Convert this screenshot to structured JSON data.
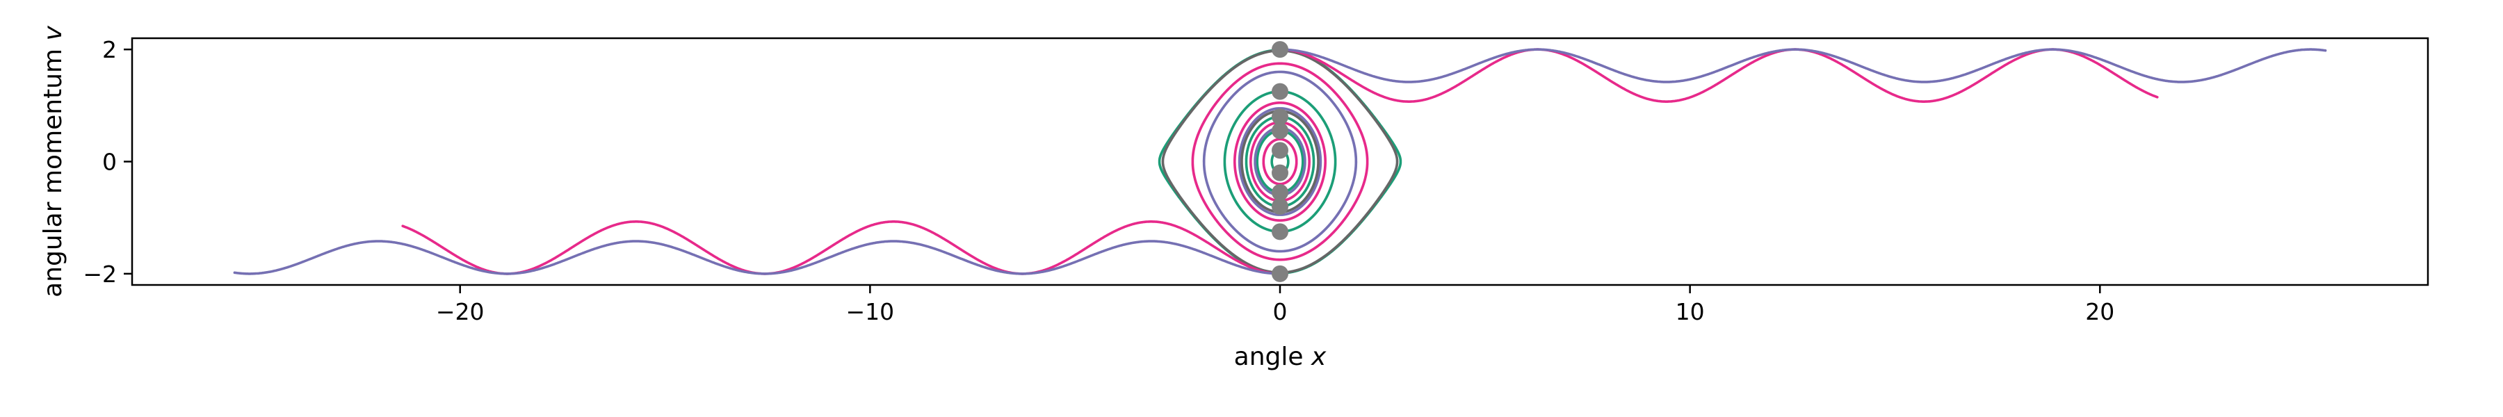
{
  "chart_data": {
    "type": "line",
    "title": "",
    "xlabel": "angle",
    "xlabel_var": "x",
    "ylabel": "angular momentum",
    "ylabel_var": "v",
    "xlim": [
      -28,
      28
    ],
    "ylim": [
      -2.2,
      2.2
    ],
    "xticks": [
      -20,
      -10,
      0,
      10,
      20
    ],
    "xtick_labels": [
      "−20",
      "−10",
      "0",
      "10",
      "20"
    ],
    "yticks": [
      -2,
      0,
      2
    ],
    "ytick_labels": [
      "−2",
      "0",
      "2"
    ],
    "grid": false,
    "legend": "none",
    "system": "pendulum",
    "initial_points": {
      "x": [
        0,
        0,
        0,
        0,
        0,
        0,
        0,
        0,
        0,
        0
      ],
      "v": [
        2.0,
        1.25,
        0.8,
        0.55,
        0.2,
        -0.2,
        -0.55,
        -0.8,
        -1.25,
        -2.0
      ],
      "color": "#808080"
    },
    "trajectories": [
      {
        "color": "#1b9e77",
        "x0": 0,
        "v0": 1.99,
        "duration": 80
      },
      {
        "color": "#1b9e77",
        "x0": 0,
        "v0": 1.25,
        "duration": 80
      },
      {
        "color": "#1b9e77",
        "x0": 0,
        "v0": 0.8,
        "duration": 80
      },
      {
        "color": "#1b9e77",
        "x0": 0,
        "v0": 0.55,
        "duration": 80
      },
      {
        "color": "#1b9e77",
        "x0": 0,
        "v0": 0.2,
        "duration": 80
      },
      {
        "color": "#e7298a",
        "x0": 0,
        "v0": 1.75,
        "duration": 80
      },
      {
        "color": "#e7298a",
        "x0": 0,
        "v0": 1.05,
        "duration": 80
      },
      {
        "color": "#e7298a",
        "x0": 0,
        "v0": 0.7,
        "duration": 80
      },
      {
        "color": "#e7298a",
        "x0": 0,
        "v0": 0.4,
        "duration": 80
      },
      {
        "color": "#7570b3",
        "x0": 0,
        "v0": 1.6,
        "duration": 80
      },
      {
        "color": "#7570b3",
        "x0": 0,
        "v0": 0.95,
        "duration": 80
      },
      {
        "color": "#7570b3",
        "x0": 0,
        "v0": 0.6,
        "duration": 80
      },
      {
        "color": "#666666",
        "x0": 0,
        "v0": 1.98,
        "duration": 80
      },
      {
        "color": "#666666",
        "x0": 0,
        "v0": 0.9,
        "duration": 80
      },
      {
        "color": "#e7298a",
        "x0": 0,
        "v0": 2.0,
        "mode": "rotation",
        "vmin": 1.07,
        "xend": 21.4
      },
      {
        "color": "#e7298a",
        "x0": 0,
        "v0": -2.0,
        "mode": "rotation",
        "vmin": 1.07,
        "xend": -21.4
      },
      {
        "color": "#7570b3",
        "x0": 0,
        "v0": 2.0,
        "mode": "rotation",
        "vmin": 1.42,
        "xend": 25.5
      },
      {
        "color": "#7570b3",
        "x0": 0,
        "v0": -2.0,
        "mode": "rotation",
        "vmin": 1.42,
        "xend": -25.5
      }
    ]
  }
}
